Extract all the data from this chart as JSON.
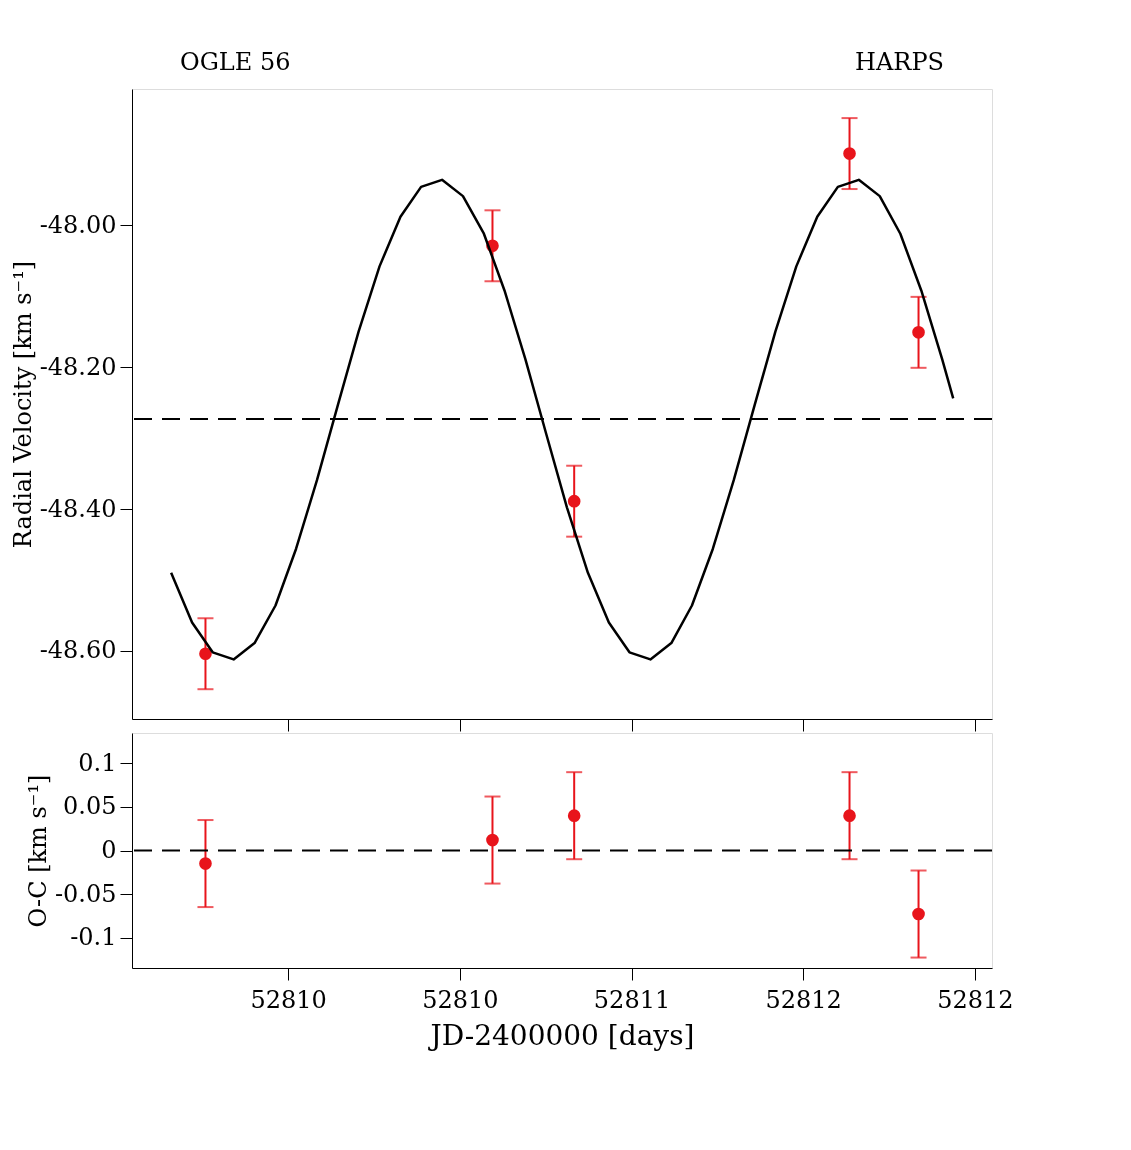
{
  "chart_data": [
    {
      "type": "scatter",
      "ylabel": "Radial Velocity [km s⁻¹]",
      "annotations": [
        "OGLE 56",
        "HARPS"
      ],
      "xlim": [
        52809.545,
        52812.05
      ],
      "xticks": [
        {
          "value": 52810,
          "label": null
        },
        {
          "value": 52810.5,
          "label": null
        },
        {
          "value": 52811,
          "label": null
        },
        {
          "value": 52811.5,
          "label": null
        },
        {
          "value": 52812,
          "label": null
        }
      ],
      "ylim": [
        -48.696,
        -47.808
      ],
      "yticks": [
        {
          "value": -48.6,
          "label": "-48.60"
        },
        {
          "value": -48.4,
          "label": "-48.40"
        },
        {
          "value": -48.2,
          "label": "-48.20"
        },
        {
          "value": -48.0,
          "label": "-48.00"
        }
      ],
      "tick_labels": "y",
      "grid": false,
      "legend": false,
      "ref_lines": [
        {
          "axis": "y",
          "value": -48.273,
          "line_style": "dashed",
          "color": "#000000"
        }
      ],
      "series": [
        {
          "color": "#e8141b",
          "marker": "circle",
          "x": [
            52809.759,
            52810.595,
            52810.833,
            52811.635,
            52811.836
          ],
          "values": [
            -48.604,
            -48.029,
            -48.389,
            -47.899,
            -48.151
          ],
          "errors": [
            0.05,
            0.05,
            0.05,
            0.05,
            0.05
          ]
        },
        {
          "type": "line",
          "color": "#000000",
          "line_style": "solid",
          "x": [
            52809.659,
            52809.72,
            52809.78,
            52809.841,
            52809.902,
            52809.963,
            52810.023,
            52810.084,
            52810.145,
            52810.205,
            52810.266,
            52810.327,
            52810.387,
            52810.448,
            52810.509,
            52810.57,
            52810.63,
            52810.691,
            52810.752,
            52810.812,
            52810.873,
            52810.934,
            52810.994,
            52811.055,
            52811.116,
            52811.176,
            52811.237,
            52811.298,
            52811.359,
            52811.419,
            52811.48,
            52811.541,
            52811.601,
            52811.662,
            52811.723,
            52811.783,
            52811.844,
            52811.905,
            52811.937
          ],
          "values": [
            -48.49,
            -48.56,
            -48.602,
            -48.612,
            -48.589,
            -48.536,
            -48.456,
            -48.359,
            -48.253,
            -48.15,
            -48.058,
            -47.988,
            -47.946,
            -47.936,
            -47.959,
            -48.012,
            -48.092,
            -48.189,
            -48.295,
            -48.398,
            -48.49,
            -48.56,
            -48.602,
            -48.612,
            -48.589,
            -48.536,
            -48.456,
            -48.359,
            -48.253,
            -48.15,
            -48.058,
            -47.988,
            -47.946,
            -47.936,
            -47.959,
            -48.012,
            -48.092,
            -48.189,
            -48.244
          ]
        }
      ]
    },
    {
      "type": "scatter",
      "xlabel": "JD-2400000 [days]",
      "ylabel": "O-C [km s⁻¹]",
      "xlim": [
        52809.545,
        52812.05
      ],
      "xticks": [
        {
          "value": 52810,
          "label": "52810"
        },
        {
          "value": 52810.5,
          "label": "52810"
        },
        {
          "value": 52811,
          "label": "52811"
        },
        {
          "value": 52811.5,
          "label": "52812"
        },
        {
          "value": 52812,
          "label": "52812"
        }
      ],
      "ylim": [
        -0.135,
        0.135
      ],
      "yticks": [
        -0.1,
        -0.05,
        0,
        0.05,
        0.1
      ],
      "grid": false,
      "legend": false,
      "ref_lines": [
        {
          "axis": "y",
          "value": 0,
          "line_style": "dashed",
          "color": "#000000"
        }
      ],
      "series": [
        {
          "color": "#e8141b",
          "marker": "circle",
          "x": [
            52809.759,
            52810.595,
            52810.833,
            52811.635,
            52811.836
          ],
          "values": [
            -0.015,
            0.012,
            0.04,
            0.04,
            -0.073
          ],
          "errors": [
            0.05,
            0.05,
            0.05,
            0.05,
            0.05
          ]
        }
      ]
    }
  ]
}
